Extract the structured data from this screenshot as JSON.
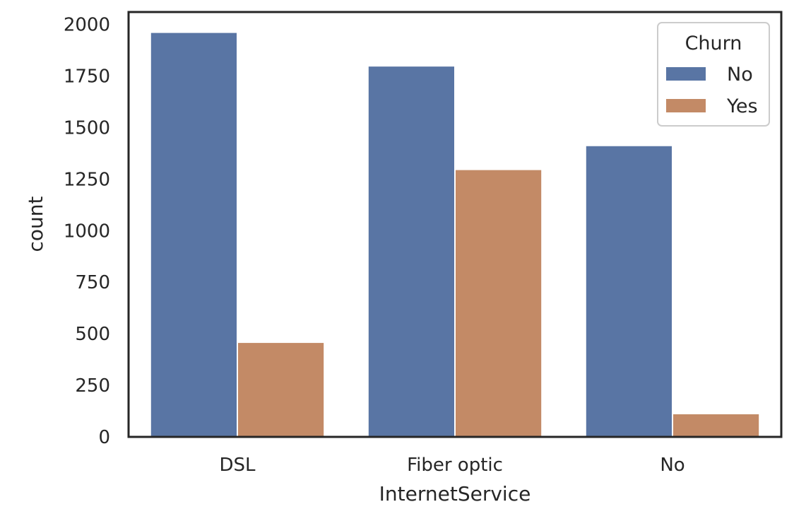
{
  "chart_data": {
    "type": "bar",
    "title": "",
    "xlabel": "InternetService",
    "ylabel": "count",
    "categories": [
      "DSL",
      "Fiber optic",
      "No"
    ],
    "series": [
      {
        "name": "No",
        "values": [
          1962,
          1799,
          1413
        ],
        "color": "#5975a4"
      },
      {
        "name": "Yes",
        "values": [
          459,
          1297,
          113
        ],
        "color": "#c38a66"
      }
    ],
    "ylim": [
      0,
      2060
    ],
    "yticks": [
      0,
      250,
      500,
      750,
      1000,
      1250,
      1500,
      1750,
      2000
    ],
    "grid": false,
    "legend": {
      "title": "Churn",
      "placement": "top-right"
    }
  }
}
